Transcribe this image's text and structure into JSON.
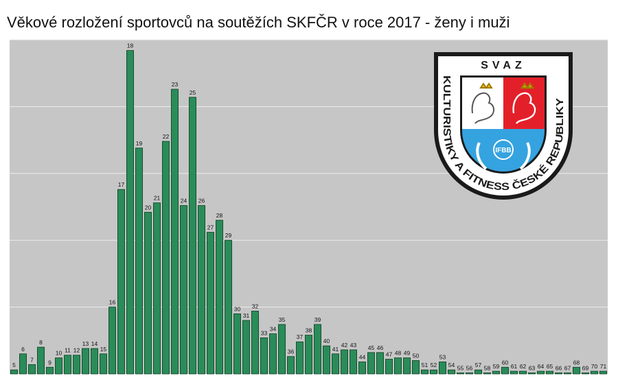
{
  "title": "Věkové rozložení sportovců na soutěžích SKFČR v roce 2017 - ženy i muži",
  "chart_data": {
    "type": "bar",
    "title": "Věkové rozložení sportovců na soutěžích SKFČR v roce 2017 - ženy i muži",
    "xlabel": "",
    "ylabel": "",
    "categories": [
      "5",
      "6",
      "7",
      "8",
      "9",
      "10",
      "11",
      "12",
      "13",
      "14",
      "15",
      "16",
      "17",
      "18",
      "19",
      "20",
      "21",
      "22",
      "23",
      "24",
      "25",
      "26",
      "27",
      "28",
      "29",
      "30",
      "31",
      "32",
      "33",
      "34",
      "35",
      "36",
      "37",
      "38",
      "39",
      "40",
      "41",
      "42",
      "43",
      "44",
      "45",
      "46",
      "47",
      "48",
      "49",
      "50",
      "51",
      "52",
      "53",
      "54",
      "55",
      "56",
      "57",
      "58",
      "59",
      "60",
      "61",
      "62",
      "63",
      "64",
      "65",
      "66",
      "67",
      "68",
      "69",
      "70",
      "71"
    ],
    "values": [
      3,
      15,
      7,
      20,
      5,
      12,
      14,
      14,
      19,
      19,
      15,
      50,
      138,
      242,
      169,
      121,
      128,
      174,
      213,
      126,
      207,
      126,
      106,
      115,
      100,
      45,
      40,
      47,
      27,
      30,
      37,
      13,
      24,
      29,
      37,
      21,
      15,
      18,
      18,
      9,
      16,
      16,
      11,
      12,
      12,
      10,
      3,
      3,
      9,
      3,
      0,
      0,
      3,
      0,
      2,
      5,
      2,
      2,
      0,
      2,
      2,
      0,
      0,
      5,
      0,
      2,
      2
    ],
    "ylim": [
      0,
      250
    ],
    "grid": true,
    "colors": {
      "bar": "#2a8c59",
      "bar_edge": "#0d3d22",
      "plot_bg": "#c6c6c6",
      "grid": "#ececec"
    }
  },
  "logo": {
    "top_text": "SVAZ",
    "ring_text": "KULTURISTIKY A FITNESS ČESKÉ REPUBLIKY",
    "badge_text": "IFBB",
    "colors": {
      "white": "#ffffff",
      "red": "#e3202a",
      "blue": "#35a3e0",
      "border": "#1a1a1a"
    }
  }
}
